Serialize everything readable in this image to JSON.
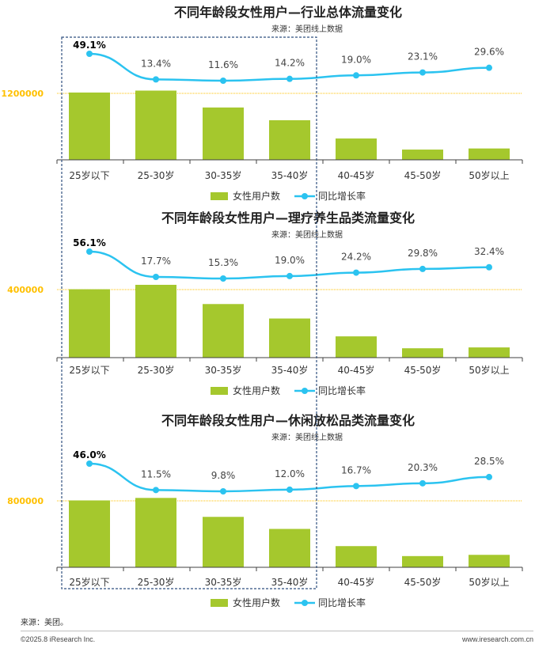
{
  "chart_data": [
    {
      "type": "bar",
      "title": "不同年龄段女性用户—行业总体流量变化",
      "source": "来源：美团线上数据",
      "categories": [
        "25岁以下",
        "25-30岁",
        "30-35岁",
        "35-40岁",
        "40-45岁",
        "45-50岁",
        "50岁以上"
      ],
      "series": [
        {
          "name": "女性用户数",
          "type": "bar",
          "values": [
            1215000,
            1250000,
            945000,
            715000,
            385000,
            185000,
            205000
          ]
        },
        {
          "name": "同比增长率",
          "type": "line",
          "values": [
            49.1,
            13.4,
            11.6,
            14.2,
            19.0,
            23.1,
            29.6
          ],
          "labels": [
            "49.1%",
            "13.4%",
            "11.6%",
            "14.2%",
            "19.0%",
            "23.1%",
            "29.6%"
          ]
        }
      ],
      "reference_line": {
        "value": 1200000,
        "label": "1200000"
      },
      "grid": false,
      "legend": "bottom"
    },
    {
      "type": "bar",
      "title": "不同年龄段女性用户—理疗养生品类流量变化",
      "source": "来源：美团线上数据",
      "categories": [
        "25岁以下",
        "25-30岁",
        "30-35岁",
        "35-40岁",
        "40-45岁",
        "45-50岁",
        "50岁以上"
      ],
      "series": [
        {
          "name": "女性用户数",
          "type": "bar",
          "values": [
            402000,
            428000,
            315000,
            230000,
            125000,
            55000,
            60000
          ]
        },
        {
          "name": "同比增长率",
          "type": "line",
          "values": [
            56.1,
            17.7,
            15.3,
            19.0,
            24.2,
            29.8,
            32.4
          ],
          "labels": [
            "56.1%",
            "17.7%",
            "15.3%",
            "19.0%",
            "24.2%",
            "29.8%",
            "32.4%"
          ]
        }
      ],
      "reference_line": {
        "value": 400000,
        "label": "400000"
      },
      "grid": false,
      "legend": "bottom"
    },
    {
      "type": "bar",
      "title": "不同年龄段女性用户—休闲放松品类流量变化",
      "source": "来源：美团线上数据",
      "categories": [
        "25岁以下",
        "25-30岁",
        "30-35岁",
        "35-40岁",
        "40-45岁",
        "45-50岁",
        "50岁以上"
      ],
      "series": [
        {
          "name": "女性用户数",
          "type": "bar",
          "values": [
            805000,
            835000,
            607000,
            462000,
            255000,
            135000,
            150000
          ]
        },
        {
          "name": "同比增长率",
          "type": "line",
          "values": [
            46.0,
            11.5,
            9.8,
            12.0,
            16.7,
            20.3,
            28.5
          ],
          "labels": [
            "46.0%",
            "11.5%",
            "9.8%",
            "12.0%",
            "16.7%",
            "20.3%",
            "28.5%"
          ]
        }
      ],
      "reference_line": {
        "value": 800000,
        "label": "800000"
      },
      "grid": false,
      "legend": "bottom"
    }
  ],
  "colors": {
    "bar": "#a5c82d",
    "line": "#2bc3f0",
    "reference": "#ffc000",
    "highlight_box": "#2f4f7f",
    "axis": "#404040"
  },
  "footnote": "来源：美团。",
  "footer": {
    "left": "©2025.8 iResearch Inc.",
    "right": "www.iresearch.com.cn"
  }
}
